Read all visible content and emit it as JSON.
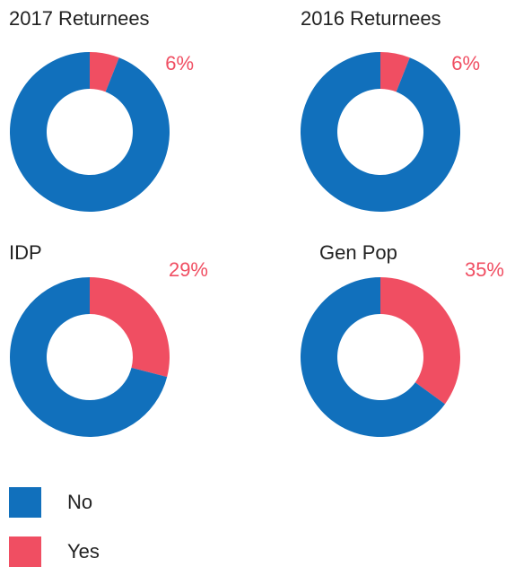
{
  "chart_data": [
    {
      "type": "donut",
      "title": "2017 Returnees",
      "categories": [
        "No",
        "Yes"
      ],
      "colors": [
        "#1170bc",
        "#f04e62"
      ],
      "values": [
        94,
        6
      ],
      "value_labels": [
        null,
        "6%"
      ]
    },
    {
      "type": "donut",
      "title": "2016 Returnees",
      "categories": [
        "No",
        "Yes"
      ],
      "colors": [
        "#1170bc",
        "#f04e62"
      ],
      "values": [
        94,
        6
      ],
      "value_labels": [
        null,
        "6%"
      ]
    },
    {
      "type": "donut",
      "title": "IDP",
      "categories": [
        "No",
        "Yes"
      ],
      "colors": [
        "#1170bc",
        "#f04e62"
      ],
      "values": [
        71,
        29
      ],
      "value_labels": [
        null,
        "29%"
      ]
    },
    {
      "type": "donut",
      "title": "Gen Pop",
      "categories": [
        "No",
        "Yes"
      ],
      "colors": [
        "#1170bc",
        "#f04e62"
      ],
      "values": [
        65,
        35
      ],
      "value_labels": [
        null,
        "35%"
      ]
    }
  ]
}
